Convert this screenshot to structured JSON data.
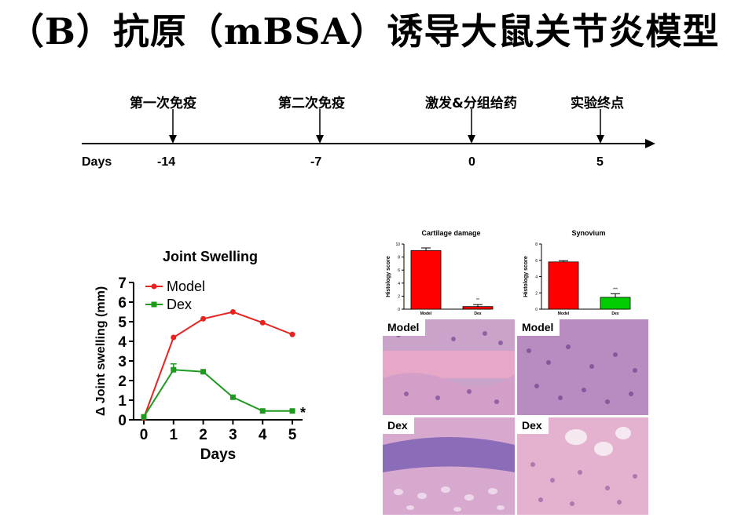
{
  "title": "（B）抗原（mBSA）诱导大鼠关节炎模型",
  "timeline": {
    "axis_label": "Days",
    "events": [
      {
        "label": "第一次免疫",
        "tick": "-14"
      },
      {
        "label": "第二次免疫",
        "tick": "-7"
      },
      {
        "label": "激发&分组给药",
        "tick": "0"
      },
      {
        "label": "实验终点",
        "tick": "5"
      }
    ]
  },
  "chart_data": [
    {
      "type": "line",
      "title": "Joint Swelling",
      "xlabel": "Days",
      "ylabel": "Δ Joint swelling (mm)",
      "x": [
        0,
        1,
        2,
        3,
        4,
        5
      ],
      "xlim": [
        0,
        5
      ],
      "ylim": [
        0,
        7
      ],
      "legend": "top-left",
      "series": [
        {
          "name": "Model",
          "color": "#e8231f",
          "values": [
            0.1,
            4.2,
            5.15,
            5.5,
            4.95,
            4.35
          ]
        },
        {
          "name": "Dex",
          "color": "#1e9a1e",
          "values": [
            0.15,
            2.55,
            2.45,
            1.15,
            0.45,
            0.45
          ]
        }
      ],
      "annotations": [
        "*"
      ]
    },
    {
      "type": "bar",
      "title": "Cartilage damage",
      "ylabel": "Histology score",
      "categories": [
        "Model",
        "Dex"
      ],
      "values": [
        9.0,
        0.4
      ],
      "errors": [
        0.4,
        0.3
      ],
      "ylim": [
        0,
        10
      ],
      "yticks": [
        "0",
        "2",
        "4",
        "6",
        "8",
        "10"
      ],
      "annotations": [
        "**"
      ],
      "color": "#ff0000"
    },
    {
      "type": "bar",
      "title": "Synovium",
      "ylabel": "Histology score",
      "categories": [
        "Model",
        "Dex"
      ],
      "values": [
        5.8,
        1.45
      ],
      "errors": [
        0.15,
        0.45
      ],
      "ylim": [
        0,
        8
      ],
      "yticks": [
        "0",
        "2",
        "4",
        "6",
        "8"
      ],
      "annotations": [
        "***"
      ],
      "colors": [
        "#ff0000",
        "#00cc00"
      ]
    }
  ],
  "histology": {
    "panels": [
      {
        "label": "Model"
      },
      {
        "label": "Model"
      },
      {
        "label": "Dex"
      },
      {
        "label": "Dex"
      }
    ]
  }
}
